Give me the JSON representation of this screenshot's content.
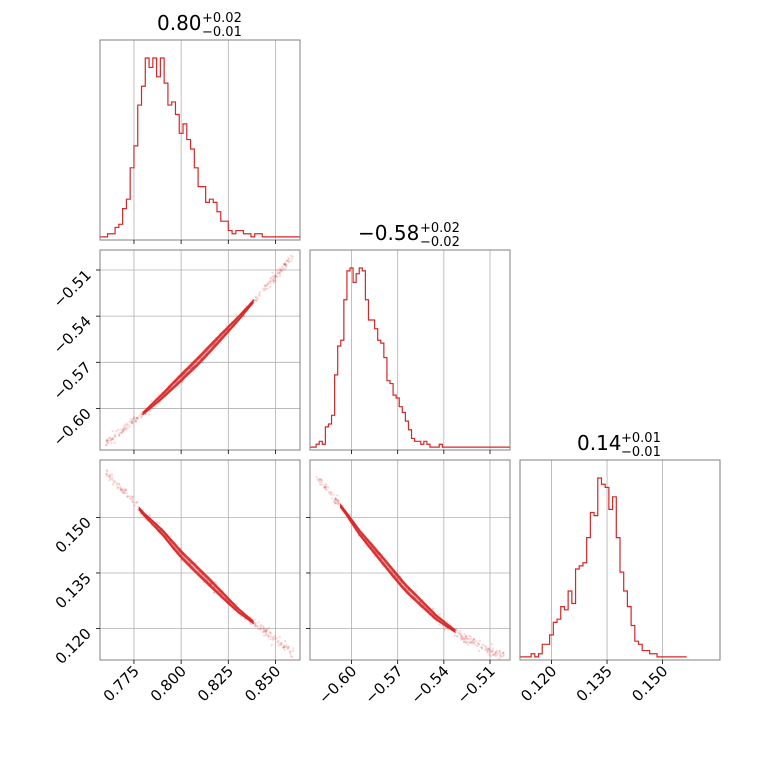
{
  "chart_data": {
    "type": "corner",
    "color": "#d62728",
    "parameters": [
      {
        "title_value": "0.80",
        "title_plus": "+0.02",
        "title_minus": "−0.01",
        "range": [
          0.757,
          0.863
        ],
        "ticks": [
          0.775,
          0.8,
          0.825,
          0.85
        ],
        "tick_labels": [
          "0.775",
          "0.800",
          "0.825",
          "0.850"
        ],
        "hist": {
          "start": 0.757,
          "width": 0.002,
          "counts": [
            1,
            1,
            2,
            2,
            4,
            5,
            10,
            13,
            23,
            30,
            43,
            49,
            58,
            55,
            58,
            52,
            58,
            50,
            43,
            44,
            40,
            34,
            37,
            32,
            29,
            23,
            17,
            17,
            12,
            13,
            12,
            9,
            6,
            6,
            3,
            2,
            3,
            3,
            2,
            2,
            1,
            2,
            2,
            1,
            1,
            1,
            1,
            1,
            1,
            1,
            1,
            1,
            1
          ]
        }
      },
      {
        "title_value": "−0.58",
        "title_plus": "+0.02",
        "title_minus": "−0.02",
        "range": [
          -0.627,
          -0.497
        ],
        "ticks": [
          -0.6,
          -0.57,
          -0.54,
          -0.51
        ],
        "tick_labels": [
          "−0.60",
          "−0.57",
          "−0.54",
          "−0.51"
        ],
        "hist": {
          "start": -0.627,
          "width": 0.002,
          "counts": [
            1,
            1,
            2,
            3,
            2,
            8,
            9,
            12,
            26,
            36,
            38,
            52,
            62,
            63,
            58,
            61,
            63,
            62,
            52,
            45,
            45,
            42,
            38,
            37,
            32,
            24,
            23,
            19,
            18,
            15,
            13,
            10,
            7,
            4,
            3,
            3,
            2,
            3,
            2,
            1,
            1,
            1,
            2,
            1,
            1,
            1,
            1,
            1,
            1,
            1,
            1,
            1,
            1,
            1,
            1,
            1,
            1,
            1,
            1,
            1,
            1,
            1,
            1,
            1,
            1
          ]
        }
      },
      {
        "title_value": "0.14",
        "title_plus": "+0.01",
        "title_minus": "−0.01",
        "range": [
          0.1115,
          0.1655
        ],
        "ticks": [
          0.12,
          0.135,
          0.15
        ],
        "tick_labels": [
          "0.120",
          "0.135",
          "0.150"
        ],
        "hist": {
          "start": 0.1115,
          "width": 0.001,
          "counts": [
            1,
            1,
            1,
            2,
            1,
            2,
            5,
            5,
            8,
            12,
            13,
            17,
            16,
            22,
            18,
            29,
            30,
            31,
            39,
            47,
            46,
            58,
            56,
            55,
            48,
            52,
            39,
            28,
            22,
            17,
            11,
            6,
            5,
            3,
            3,
            2,
            2,
            1,
            1,
            1,
            1,
            1,
            1,
            1,
            1
          ]
        }
      }
    ],
    "pair_lines": {
      "p0p1": [
        [
          0.76,
          -0.623
        ],
        [
          0.77,
          -0.613
        ],
        [
          0.78,
          -0.603
        ],
        [
          0.79,
          -0.592
        ],
        [
          0.8,
          -0.58
        ],
        [
          0.81,
          -0.568
        ],
        [
          0.82,
          -0.555
        ],
        [
          0.83,
          -0.542
        ],
        [
          0.84,
          -0.528
        ],
        [
          0.85,
          -0.514
        ],
        [
          0.86,
          -0.5
        ]
      ],
      "p0p2": [
        [
          0.76,
          0.162
        ],
        [
          0.77,
          0.157
        ],
        [
          0.78,
          0.151
        ],
        [
          0.79,
          0.146
        ],
        [
          0.8,
          0.14
        ],
        [
          0.81,
          0.135
        ],
        [
          0.82,
          0.13
        ],
        [
          0.83,
          0.125
        ],
        [
          0.84,
          0.121
        ],
        [
          0.85,
          0.117
        ],
        [
          0.86,
          0.113
        ]
      ],
      "p1p2": [
        [
          -0.625,
          0.162
        ],
        [
          -0.615,
          0.157
        ],
        [
          -0.605,
          0.152
        ],
        [
          -0.595,
          0.146
        ],
        [
          -0.585,
          0.141
        ],
        [
          -0.575,
          0.136
        ],
        [
          -0.565,
          0.131
        ],
        [
          -0.555,
          0.127
        ],
        [
          -0.545,
          0.123
        ],
        [
          -0.535,
          0.12
        ],
        [
          -0.525,
          0.117
        ],
        [
          -0.515,
          0.115
        ],
        [
          -0.505,
          0.113
        ]
      ]
    },
    "contour_segments": {
      "p0p1": [
        0.78,
        0.838
      ],
      "p0p2": [
        0.778,
        0.838
      ],
      "p1p2": [
        -0.607,
        -0.533
      ]
    }
  }
}
